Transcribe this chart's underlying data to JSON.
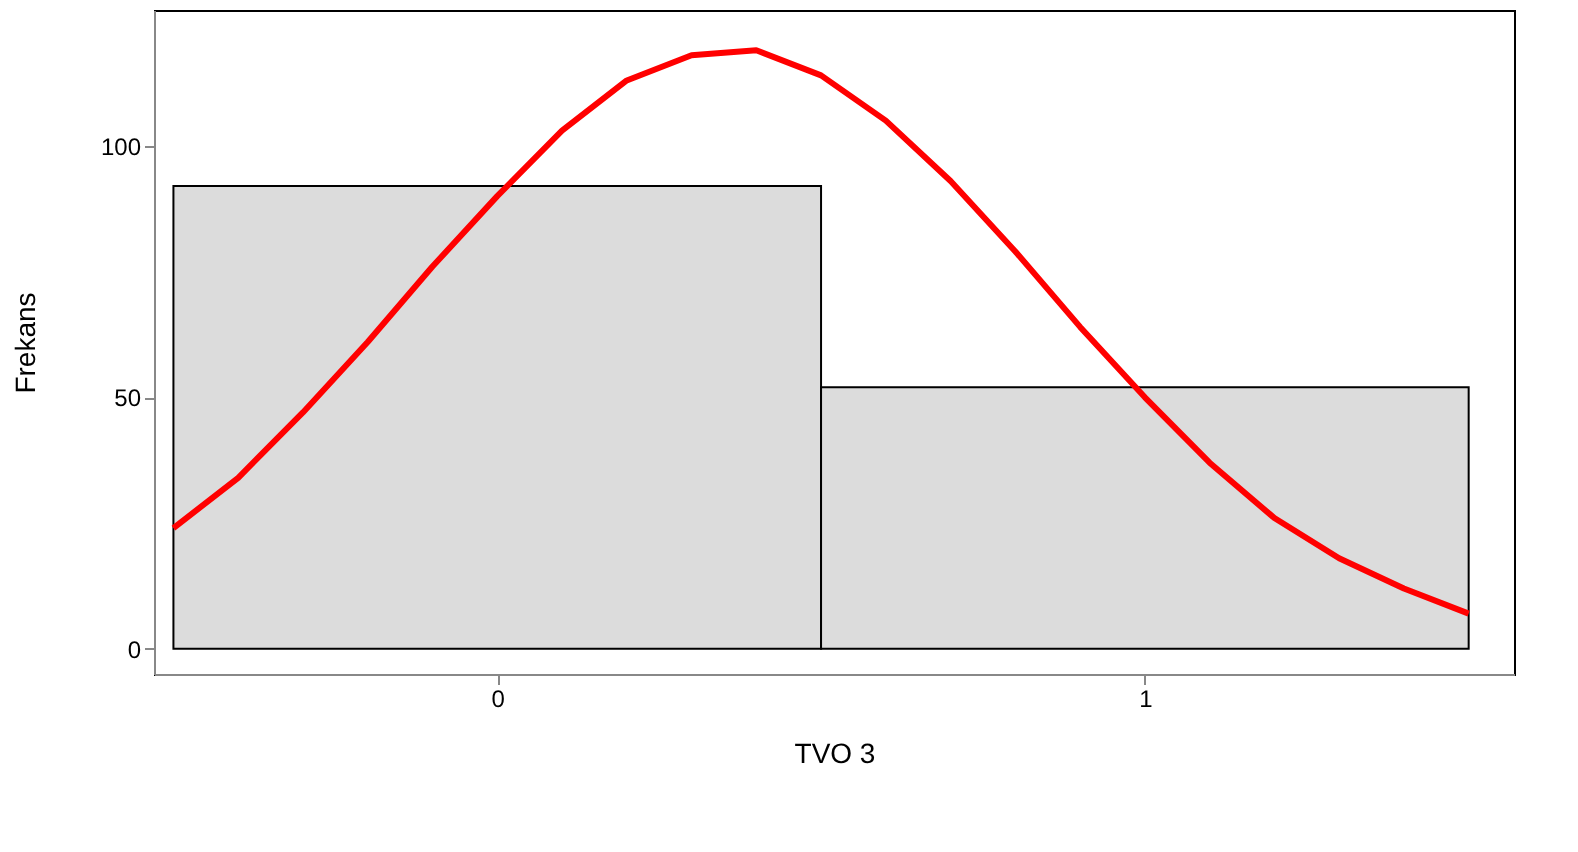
{
  "chart_data": {
    "type": "histogram",
    "xlabel": "TVO 3",
    "ylabel": "Frekans",
    "bins": [
      -0.5,
      0.5,
      1.5
    ],
    "values": [
      92,
      52
    ],
    "color": "#dcdcdc",
    "series": [
      {
        "type": "line",
        "color": "#ff0000",
        "x": [
          -0.5,
          -0.4,
          -0.3,
          -0.2,
          -0.1,
          0,
          0.1,
          0.2,
          0.3,
          0.4,
          0.5,
          0.6,
          0.7,
          0.8,
          0.9,
          1.0,
          1.1,
          1.2,
          1.3,
          1.4,
          1.5
        ],
        "values": [
          24,
          34,
          47,
          61,
          76,
          90,
          103,
          113,
          118,
          119,
          114,
          105,
          93,
          79,
          64,
          50,
          37,
          26,
          18,
          12,
          7
        ]
      }
    ],
    "xlim": [
      -0.53,
      1.57
    ],
    "ylim": [
      -5,
      127
    ],
    "xticks": [
      0,
      1
    ],
    "yticks": [
      0,
      50,
      100
    ],
    "grid": false
  }
}
